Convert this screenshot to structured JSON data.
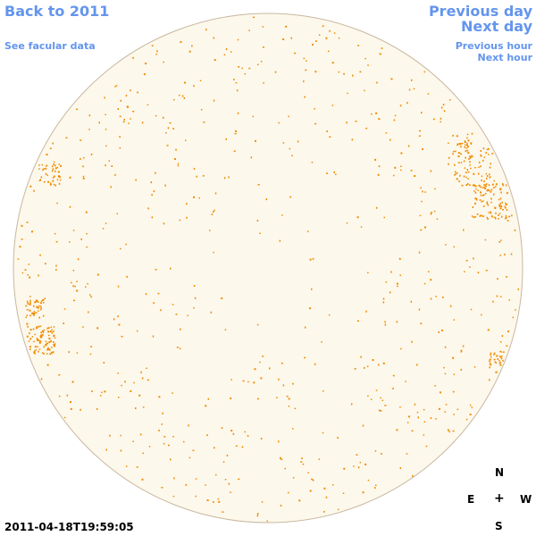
{
  "nav": {
    "back": "Back to 2011",
    "facular": "See facular data",
    "previous_day": "Previous day",
    "next_day": "Next day",
    "previous_hour": "Previous hour",
    "next_hour": "Next hour"
  },
  "timestamp": "2011-04-18T19:59:05",
  "compass": {
    "north": "N",
    "east": "E",
    "center": "+",
    "west": "W",
    "south": "S"
  },
  "colors": {
    "link": "#6495ed",
    "disk_fill": "#fdf8ec",
    "disk_edge": "#c8b8a0",
    "feature": "#f08c00"
  }
}
